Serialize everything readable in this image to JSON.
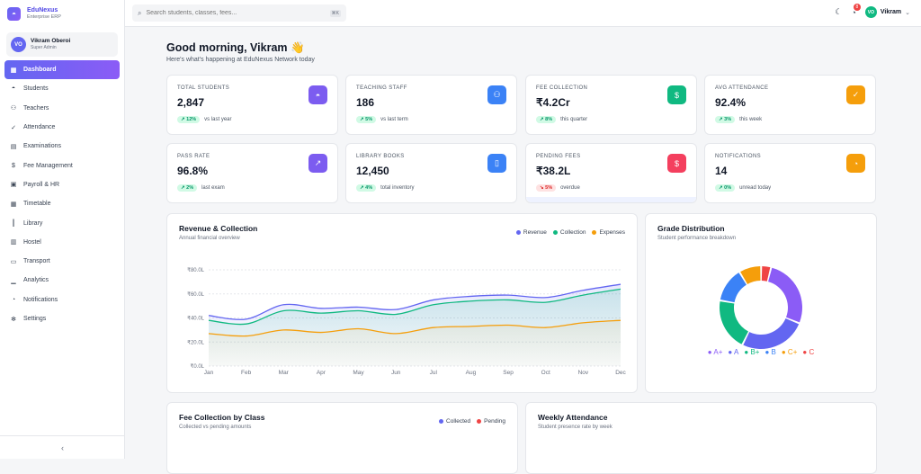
{
  "brand": {
    "name": "EduNexus",
    "sub": "Enterprise ERP"
  },
  "user": {
    "initials": "VO",
    "name": "Vikram Oberoi",
    "role": "Super Admin"
  },
  "nav": [
    {
      "label": "Dashboard",
      "icon": "dashboard-icon",
      "glyph": "▦",
      "active": true
    },
    {
      "label": "Students",
      "icon": "graduation-cap-icon",
      "glyph": "◓"
    },
    {
      "label": "Teachers",
      "icon": "users-icon",
      "glyph": "⚇"
    },
    {
      "label": "Attendance",
      "icon": "user-check-icon",
      "glyph": "✓"
    },
    {
      "label": "Examinations",
      "icon": "clipboard-icon",
      "glyph": "▤"
    },
    {
      "label": "Fee Management",
      "icon": "dollar-icon",
      "glyph": "$"
    },
    {
      "label": "Payroll & HR",
      "icon": "briefcase-icon",
      "glyph": "▣"
    },
    {
      "label": "Timetable",
      "icon": "calendar-icon",
      "glyph": "▦"
    },
    {
      "label": "Library",
      "icon": "book-icon",
      "glyph": "║"
    },
    {
      "label": "Hostel",
      "icon": "building-icon",
      "glyph": "▥"
    },
    {
      "label": "Transport",
      "icon": "bus-icon",
      "glyph": "▭"
    },
    {
      "label": "Analytics",
      "icon": "bar-chart-icon",
      "glyph": "▁"
    },
    {
      "label": "Notifications",
      "icon": "bell-icon",
      "glyph": "◔"
    },
    {
      "label": "Settings",
      "icon": "gear-icon",
      "glyph": "✻"
    }
  ],
  "collapse_glyph": "‹",
  "search": {
    "placeholder": "Search students, classes, fees...",
    "shortcut": "⌘K",
    "glyph": "⌕"
  },
  "topbar": {
    "theme_glyph": "☾",
    "bell_glyph": "◔",
    "notif_count": "8",
    "avatar": "VO",
    "name": "Vikram",
    "caret": "⌄"
  },
  "greeting": {
    "title": "Good morning, Vikram 👋",
    "subtitle": "Here's what's happening at EduNexus Network today"
  },
  "stats": [
    {
      "label": "TOTAL STUDENTS",
      "value": "2,847",
      "trend": "↗ 12%",
      "foot": "vs last year",
      "color": "#7c5cf0",
      "icon": "graduation-cap-icon",
      "glyph": "◓",
      "neg": false
    },
    {
      "label": "TEACHING STAFF",
      "value": "186",
      "trend": "↗ 5%",
      "foot": "vs last term",
      "color": "#3b82f6",
      "icon": "users-icon",
      "glyph": "⚇",
      "neg": false
    },
    {
      "label": "FEE COLLECTION",
      "value": "₹4.2Cr",
      "trend": "↗ 8%",
      "foot": "this quarter",
      "color": "#10b981",
      "icon": "dollar-icon",
      "glyph": "$",
      "neg": false
    },
    {
      "label": "AVG ATTENDANCE",
      "value": "92.4%",
      "trend": "↗ 3%",
      "foot": "this week",
      "color": "#f59e0b",
      "icon": "user-check-icon",
      "glyph": "✓",
      "neg": false
    },
    {
      "label": "PASS RATE",
      "value": "96.8%",
      "trend": "↗ 2%",
      "foot": "last exam",
      "color": "#7c5cf0",
      "icon": "trending-up-icon",
      "glyph": "↗",
      "neg": false
    },
    {
      "label": "LIBRARY BOOKS",
      "value": "12,450",
      "trend": "↗ 4%",
      "foot": "total inventory",
      "color": "#3b82f6",
      "icon": "book-open-icon",
      "glyph": "▯",
      "neg": false
    },
    {
      "label": "PENDING FEES",
      "value": "₹38.2L",
      "trend": "↘ 5%",
      "foot": "overdue",
      "color": "#f43f5e",
      "icon": "dollar-icon",
      "glyph": "$",
      "neg": true
    },
    {
      "label": "NOTIFICATIONS",
      "value": "14",
      "trend": "↗ 0%",
      "foot": "unread today",
      "color": "#f59e0b",
      "icon": "bell-icon",
      "glyph": "◔",
      "neg": false
    }
  ],
  "revenue": {
    "title": "Revenue & Collection",
    "subtitle": "Annual financial overview"
  },
  "grade": {
    "title": "Grade Distribution",
    "subtitle": "Student performance breakdown"
  },
  "feeclass": {
    "title": "Fee Collection by Class",
    "subtitle": "Collected vs pending amounts",
    "legend": [
      {
        "name": "Collected",
        "color": "#6366f1"
      },
      {
        "name": "Pending",
        "color": "#ef4444"
      }
    ]
  },
  "weekly": {
    "title": "Weekly Attendance",
    "subtitle": "Student presence rate by week"
  },
  "colors": {
    "revenue": "#6366f1",
    "collection": "#10b981",
    "expenses": "#f59e0b"
  },
  "chart_data": [
    {
      "type": "area",
      "title": "Revenue & Collection",
      "categories": [
        "Jan",
        "Feb",
        "Mar",
        "Apr",
        "May",
        "Jun",
        "Jul",
        "Aug",
        "Sep",
        "Oct",
        "Nov",
        "Dec"
      ],
      "ylim": [
        0,
        80
      ],
      "yticks": [
        "₹0.0L",
        "₹20.0L",
        "₹40.0L",
        "₹60.0L",
        "₹80.0L"
      ],
      "grid": true,
      "legend": "top-right",
      "series": [
        {
          "name": "Revenue",
          "color": "#6366f1",
          "values": [
            42,
            39,
            51,
            48,
            49,
            47,
            55,
            58,
            59,
            57,
            63,
            68
          ]
        },
        {
          "name": "Collection",
          "color": "#10b981",
          "values": [
            38,
            35,
            46,
            44,
            46,
            43,
            51,
            54,
            55,
            53,
            59,
            64
          ]
        },
        {
          "name": "Expenses",
          "color": "#f59e0b",
          "values": [
            27,
            25,
            30,
            28,
            31,
            27,
            32,
            33,
            34,
            32,
            36,
            38
          ]
        }
      ]
    },
    {
      "type": "pie",
      "title": "Grade Distribution",
      "legend": "bottom",
      "categories": [
        "A+",
        "A",
        "B+",
        "B",
        "C+",
        "C"
      ],
      "values": [
        28,
        27,
        21,
        14,
        9,
        4
      ],
      "colors": [
        "#8b5cf6",
        "#6366f1",
        "#10b981",
        "#3b82f6",
        "#f59e0b",
        "#ef4444"
      ]
    }
  ]
}
